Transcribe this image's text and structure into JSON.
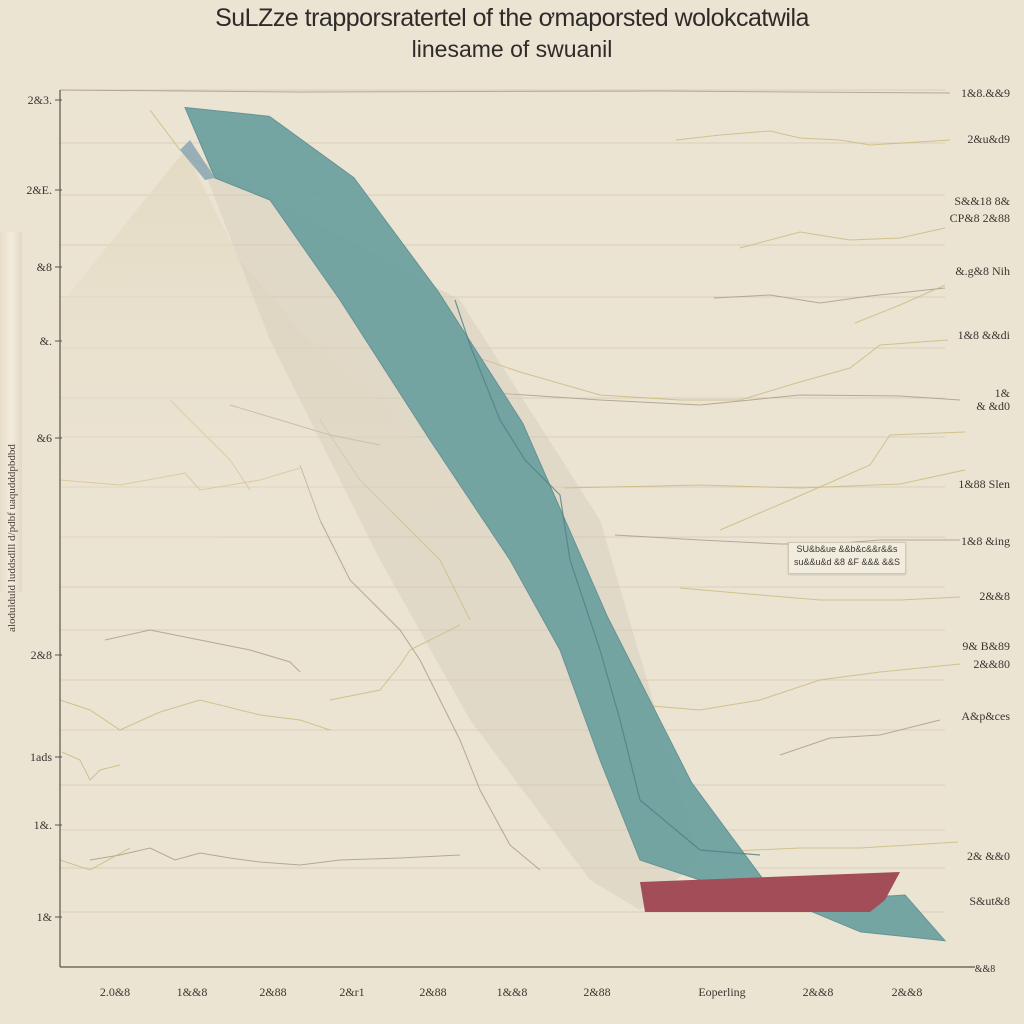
{
  "chart_data": {
    "type": "area",
    "title": "SuLZze trapporsratertel of the ơmaporsted wolokcatwila",
    "subtitle": "linesame of swuanil",
    "ylabel": "alodulduld luddsdlll d/pdbf  uaqudddpbdbd",
    "y_tick_labels": [
      "2&3.",
      "2&E.",
      "&8",
      "&.",
      "&6",
      "2&8",
      "1ads",
      "1&.",
      "1&"
    ],
    "x_tick_labels": [
      "2.0&8",
      "1&&8",
      "2&88",
      "2&r1",
      "2&88",
      "1&&8",
      "2&88",
      "Eoperling",
      "2&&8",
      "2&&8"
    ],
    "x_end_label": "&&8",
    "right_labels": [
      "1&8.&&9",
      "2&u&d9",
      "S&&18 8&",
      "CP&8 2&88",
      "&.g&8 Nih",
      "1&8 &&di",
      "1&",
      "& &d0",
      "1&88 Slen",
      "1&8 &ing",
      "2&&8",
      "9& B&89",
      "2&&80",
      "A&p&ces",
      "2& &&0",
      "S&ut&8"
    ],
    "annotation": [
      "SU&b&ue &&b&c&&r&&s",
      "su&&u&d &8 &F &&& &&S"
    ],
    "series": [
      {
        "name": "main-decline",
        "color": "#6fa2a1",
        "x": [
          0,
          1,
          2,
          3,
          4,
          5,
          6,
          7,
          8,
          9
        ],
        "values": [
          98,
          97,
          90,
          77,
          62,
          40,
          21,
          8,
          4,
          3
        ]
      },
      {
        "name": "baseline-segment",
        "color": "#a24d57",
        "x": [
          7,
          8,
          9
        ],
        "values": [
          3,
          3,
          3
        ]
      }
    ],
    "ylim": [
      0,
      100
    ],
    "grid": true
  },
  "colors": {
    "background": "#ece4d3",
    "teal": "#6fa2a1",
    "red": "#a24d57",
    "grid": "#d9cfbb",
    "thin_line": "#c8b97a"
  }
}
